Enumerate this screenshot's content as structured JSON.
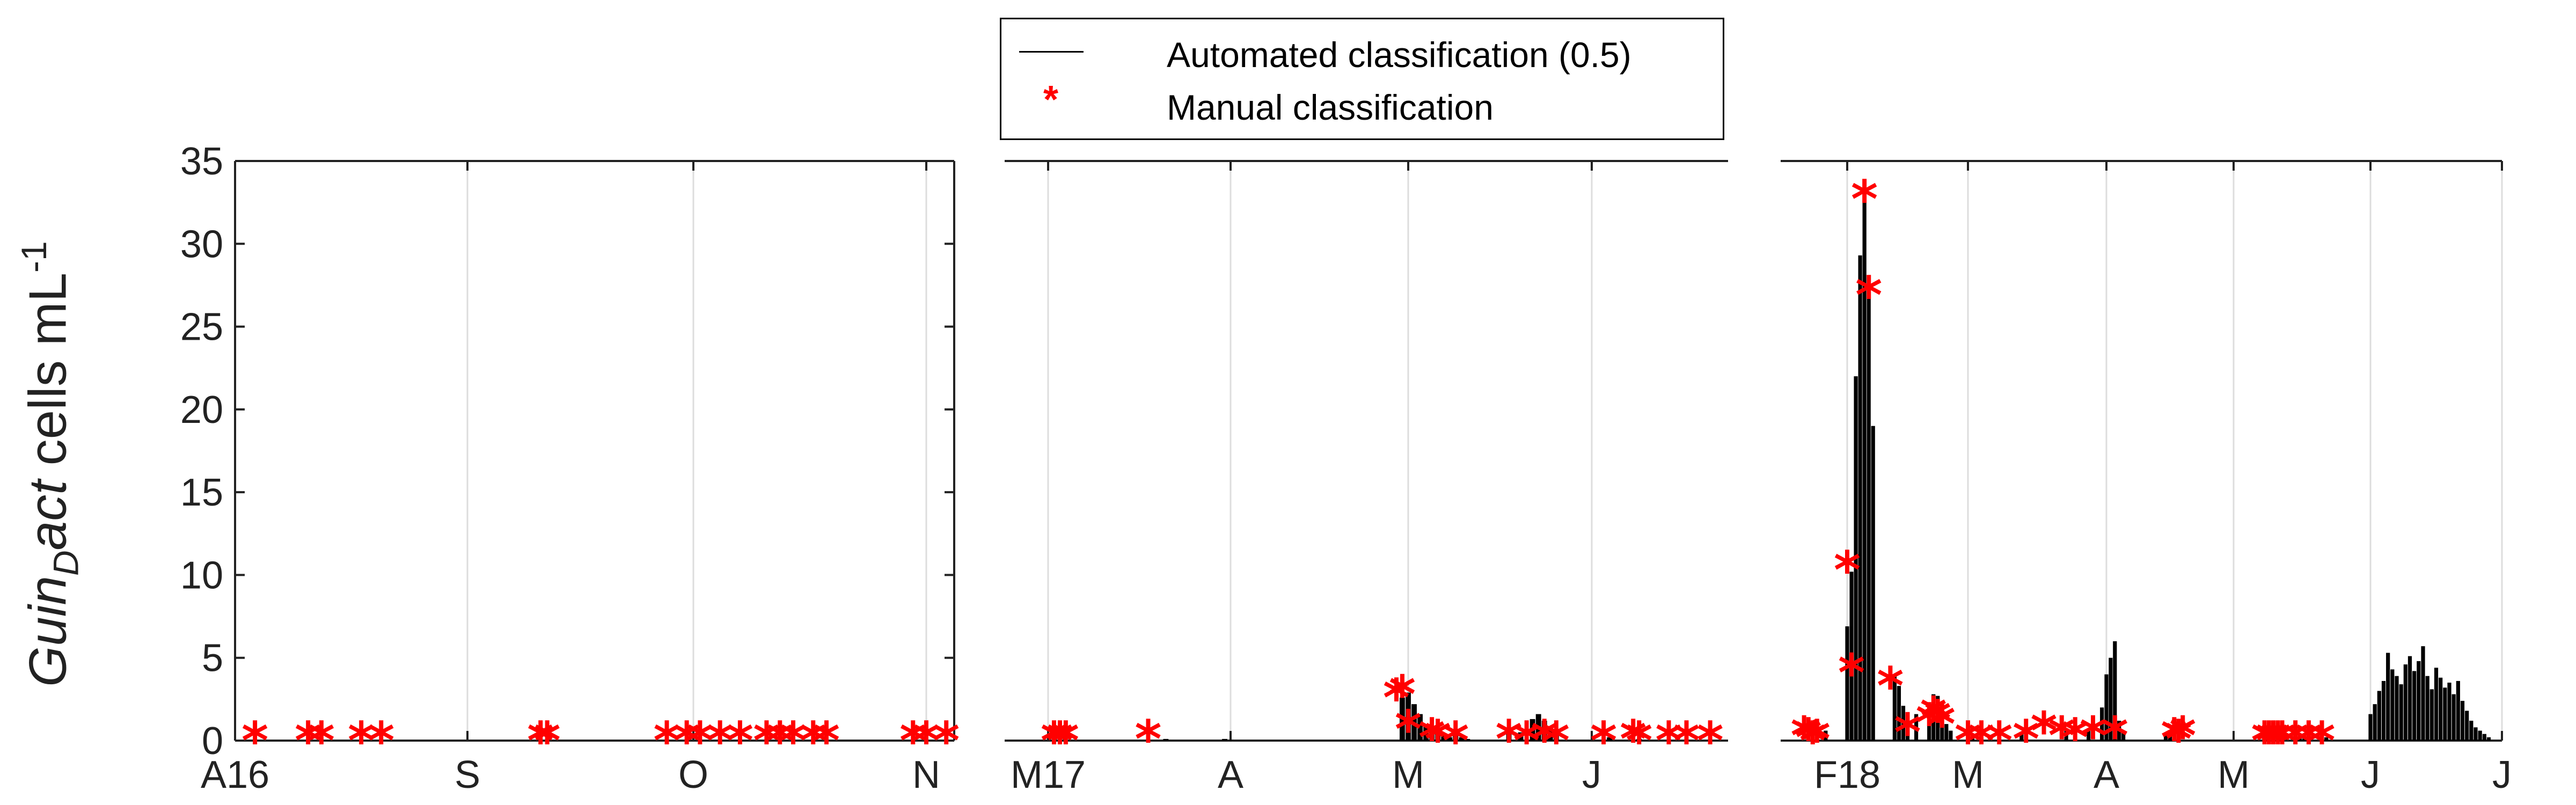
{
  "legend": {
    "automated_label": "Automated classification (0.5)",
    "manual_label": "Manual classification",
    "automated_color": "#000000",
    "manual_color": "#ff0000",
    "manual_marker": "*"
  },
  "ylabel": {
    "prefix": "Guin",
    "subscript": "D",
    "suffix": "act",
    "units_text": " cells mL",
    "units_exponent": "-1"
  },
  "chart_data": [
    {
      "type": "bar",
      "panel": "2016",
      "x_ticks": [
        "A16",
        "S",
        "O",
        "N"
      ],
      "ylim": [
        0,
        35
      ],
      "yticks": [
        0,
        5,
        10,
        15,
        20,
        25,
        30,
        35
      ],
      "ytick_labels": [
        "0",
        "5",
        "10",
        "15",
        "20",
        "25",
        "30",
        "35"
      ],
      "grid": "vertical",
      "x_span_days": [
        0,
        108
      ],
      "tick_days": [
        0,
        35,
        69,
        104
      ],
      "automated": [],
      "manual": [
        {
          "day": 3,
          "y": 0
        },
        {
          "day": 11,
          "y": 0
        },
        {
          "day": 13,
          "y": 0
        },
        {
          "day": 19,
          "y": 0
        },
        {
          "day": 22,
          "y": 0
        },
        {
          "day": 46,
          "y": 0
        },
        {
          "day": 47,
          "y": 0
        },
        {
          "day": 65,
          "y": 0
        },
        {
          "day": 68,
          "y": 0
        },
        {
          "day": 70,
          "y": 0
        },
        {
          "day": 73,
          "y": 0
        },
        {
          "day": 76,
          "y": 0
        },
        {
          "day": 80,
          "y": 0
        },
        {
          "day": 82,
          "y": 0
        },
        {
          "day": 84,
          "y": 0
        },
        {
          "day": 87,
          "y": 0
        },
        {
          "day": 89,
          "y": 0
        },
        {
          "day": 102,
          "y": 0
        },
        {
          "day": 104,
          "y": 0
        },
        {
          "day": 107,
          "y": 0
        }
      ]
    },
    {
      "type": "bar",
      "panel": "2017",
      "x_ticks": [
        "M17",
        "A",
        "M",
        "J"
      ],
      "ylim": [
        0,
        35
      ],
      "grid": "vertical",
      "x_span_days": [
        0,
        113
      ],
      "tick_days": [
        0,
        31,
        61,
        92
      ],
      "automated": [
        {
          "day": 20,
          "y": 0.1
        },
        {
          "day": 30,
          "y": 0.1
        },
        {
          "day": 31,
          "y": 0.05
        },
        {
          "day": 60,
          "y": 2.6
        },
        {
          "day": 61,
          "y": 2.9
        },
        {
          "day": 62,
          "y": 2.2
        },
        {
          "day": 63,
          "y": 1.6
        },
        {
          "day": 64,
          "y": 0.9
        },
        {
          "day": 65,
          "y": 0.6
        },
        {
          "day": 66,
          "y": 0.4
        },
        {
          "day": 67,
          "y": 0.3
        },
        {
          "day": 68,
          "y": 0.2
        },
        {
          "day": 69,
          "y": 0.3
        },
        {
          "day": 70,
          "y": 0.2
        },
        {
          "day": 71,
          "y": 0.1
        },
        {
          "day": 78,
          "y": 0.5
        },
        {
          "day": 80,
          "y": 0.5
        },
        {
          "day": 82,
          "y": 1.3
        },
        {
          "day": 83,
          "y": 1.6
        },
        {
          "day": 84,
          "y": 1.2
        },
        {
          "day": 85,
          "y": 0.8
        },
        {
          "day": 86,
          "y": 0.3
        },
        {
          "day": 95,
          "y": 0.2
        },
        {
          "day": 100,
          "y": 0.1
        }
      ],
      "manual": [
        {
          "day": 1,
          "y": 0
        },
        {
          "day": 2,
          "y": 0
        },
        {
          "day": 3,
          "y": 0
        },
        {
          "day": 17,
          "y": 0.1
        },
        {
          "day": 59,
          "y": 2.6
        },
        {
          "day": 60,
          "y": 2.8
        },
        {
          "day": 61,
          "y": 0.7
        },
        {
          "day": 65,
          "y": 0.2
        },
        {
          "day": 66,
          "y": 0.1
        },
        {
          "day": 69,
          "y": 0
        },
        {
          "day": 78,
          "y": 0.1
        },
        {
          "day": 81,
          "y": 0
        },
        {
          "day": 84,
          "y": 0.1
        },
        {
          "day": 86,
          "y": 0
        },
        {
          "day": 94,
          "y": 0
        },
        {
          "day": 99,
          "y": 0.1
        },
        {
          "day": 100,
          "y": 0
        },
        {
          "day": 105,
          "y": 0
        },
        {
          "day": 108,
          "y": 0
        },
        {
          "day": 112,
          "y": 0
        }
      ]
    },
    {
      "type": "bar",
      "panel": "2018",
      "x_ticks": [
        "F18",
        "M",
        "A",
        "M",
        "J",
        "J"
      ],
      "ylim": [
        0,
        35
      ],
      "grid": "vertical",
      "x_span_days": [
        -12,
        150
      ],
      "tick_days": [
        0,
        28,
        59,
        89,
        120,
        150
      ],
      "automated": [
        {
          "day": -7,
          "y": 0.5
        },
        {
          "day": -5,
          "y": 0.6
        },
        {
          "day": 0,
          "y": 6.9
        },
        {
          "day": 1,
          "y": 10.2
        },
        {
          "day": 2,
          "y": 22.0
        },
        {
          "day": 3,
          "y": 29.3
        },
        {
          "day": 4,
          "y": 33.0
        },
        {
          "day": 5,
          "y": 27.0
        },
        {
          "day": 6,
          "y": 19.0
        },
        {
          "day": 11,
          "y": 4.0
        },
        {
          "day": 12,
          "y": 3.3
        },
        {
          "day": 13,
          "y": 2.1
        },
        {
          "day": 14,
          "y": 1.5
        },
        {
          "day": 16,
          "y": 1.6
        },
        {
          "day": 19,
          "y": 2.3
        },
        {
          "day": 20,
          "y": 2.8
        },
        {
          "day": 21,
          "y": 2.7
        },
        {
          "day": 22,
          "y": 2.0
        },
        {
          "day": 23,
          "y": 1.0
        },
        {
          "day": 24,
          "y": 0.6
        },
        {
          "day": 29,
          "y": 0.3
        },
        {
          "day": 40,
          "y": 0.5
        },
        {
          "day": 50,
          "y": 0.6
        },
        {
          "day": 55,
          "y": 0.7
        },
        {
          "day": 58,
          "y": 2.0
        },
        {
          "day": 59,
          "y": 4.0
        },
        {
          "day": 60,
          "y": 5.0
        },
        {
          "day": 61,
          "y": 6.0
        },
        {
          "day": 62,
          "y": 1.2
        },
        {
          "day": 63,
          "y": 0.5
        },
        {
          "day": 73,
          "y": 0.3
        },
        {
          "day": 74,
          "y": 0.4
        },
        {
          "day": 103,
          "y": 0.3
        },
        {
          "day": 104,
          "y": 0.3
        },
        {
          "day": 105,
          "y": 0.3
        },
        {
          "day": 110,
          "y": 0.2
        },
        {
          "day": 120,
          "y": 1.6
        },
        {
          "day": 121,
          "y": 2.2
        },
        {
          "day": 122,
          "y": 3.0
        },
        {
          "day": 123,
          "y": 3.6
        },
        {
          "day": 124,
          "y": 5.3
        },
        {
          "day": 125,
          "y": 4.3
        },
        {
          "day": 126,
          "y": 3.9
        },
        {
          "day": 127,
          "y": 3.4
        },
        {
          "day": 128,
          "y": 4.6
        },
        {
          "day": 129,
          "y": 5.1
        },
        {
          "day": 130,
          "y": 4.2
        },
        {
          "day": 131,
          "y": 4.8
        },
        {
          "day": 132,
          "y": 5.7
        },
        {
          "day": 133,
          "y": 3.9
        },
        {
          "day": 134,
          "y": 3.1
        },
        {
          "day": 135,
          "y": 4.4
        },
        {
          "day": 136,
          "y": 3.8
        },
        {
          "day": 137,
          "y": 3.2
        },
        {
          "day": 138,
          "y": 3.5
        },
        {
          "day": 139,
          "y": 2.8
        },
        {
          "day": 140,
          "y": 3.6
        },
        {
          "day": 141,
          "y": 2.4
        },
        {
          "day": 142,
          "y": 1.8
        },
        {
          "day": 143,
          "y": 1.2
        },
        {
          "day": 144,
          "y": 0.8
        },
        {
          "day": 145,
          "y": 0.6
        },
        {
          "day": 146,
          "y": 0.4
        },
        {
          "day": 147,
          "y": 0.2
        }
      ],
      "manual": [
        {
          "day": -10,
          "y": 0.3
        },
        {
          "day": -9,
          "y": 0.2
        },
        {
          "day": -8,
          "y": 0
        },
        {
          "day": -7,
          "y": 0.1
        },
        {
          "day": 0,
          "y": 10.3
        },
        {
          "day": 1,
          "y": 4.1
        },
        {
          "day": 4,
          "y": 32.7
        },
        {
          "day": 5,
          "y": 26.9
        },
        {
          "day": 10,
          "y": 3.3
        },
        {
          "day": 14,
          "y": 0.5
        },
        {
          "day": 19,
          "y": 1.1
        },
        {
          "day": 20,
          "y": 1.5
        },
        {
          "day": 21,
          "y": 1.3
        },
        {
          "day": 22,
          "y": 1.0
        },
        {
          "day": 28,
          "y": 0
        },
        {
          "day": 31,
          "y": 0
        },
        {
          "day": 35,
          "y": 0
        },
        {
          "day": 41,
          "y": 0.1
        },
        {
          "day": 45,
          "y": 0.6
        },
        {
          "day": 49,
          "y": 0.3
        },
        {
          "day": 52,
          "y": 0.2
        },
        {
          "day": 56,
          "y": 0.3
        },
        {
          "day": 61,
          "y": 0.3
        },
        {
          "day": 75,
          "y": 0.2
        },
        {
          "day": 76,
          "y": 0.1
        },
        {
          "day": 77,
          "y": 0.3
        },
        {
          "day": 96,
          "y": 0
        },
        {
          "day": 97,
          "y": 0
        },
        {
          "day": 98,
          "y": 0
        },
        {
          "day": 99,
          "y": 0
        },
        {
          "day": 100,
          "y": 0
        },
        {
          "day": 103,
          "y": 0
        },
        {
          "day": 106,
          "y": 0
        },
        {
          "day": 109,
          "y": 0
        }
      ]
    }
  ]
}
